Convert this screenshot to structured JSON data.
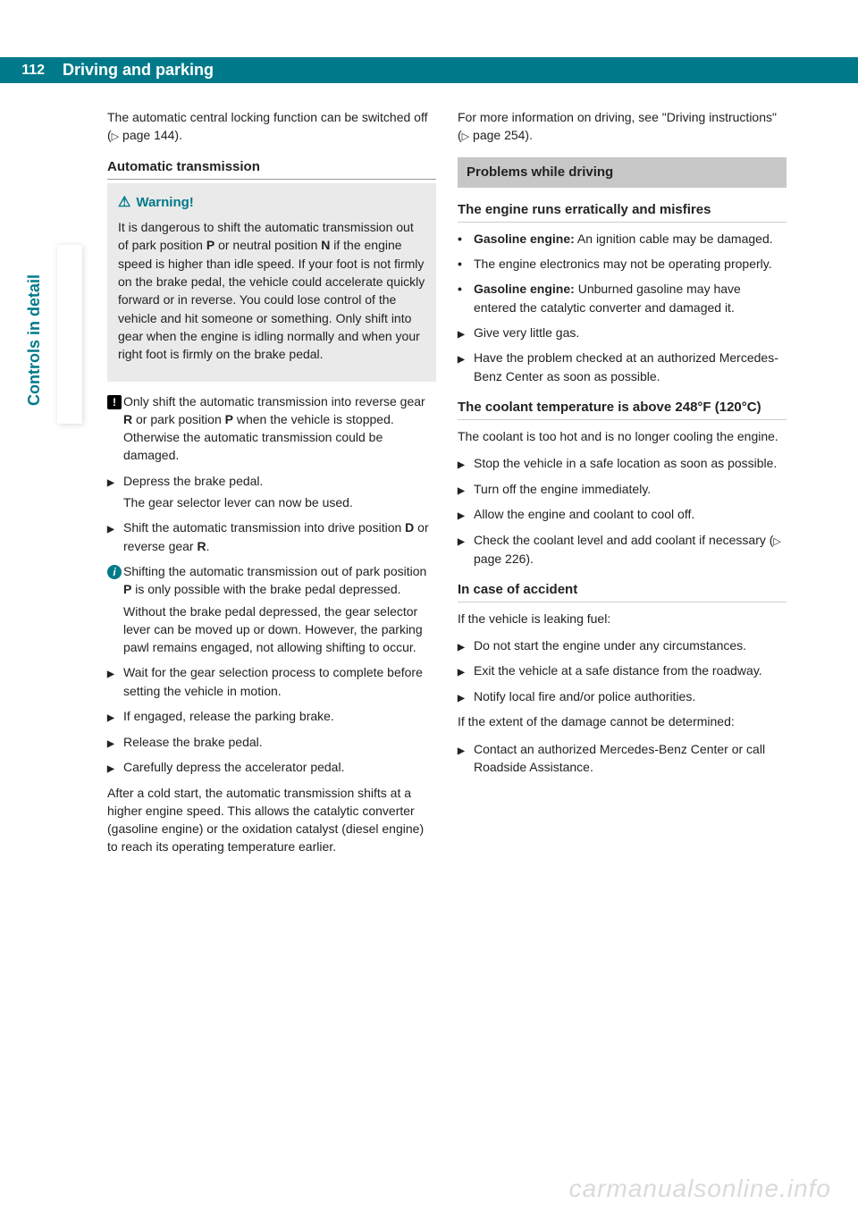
{
  "header": {
    "page_number": "112",
    "title": "Driving and parking"
  },
  "side_label": "Controls in detail",
  "watermark": "carmanualsonline.info",
  "col_left": {
    "intro": "The automatic central locking function can be switched off (",
    "intro_ref": " page 144).",
    "section1_title": "Automatic transmission",
    "warning_label": "Warning!",
    "warning_body_a": "It is dangerous to shift the automatic transmission out of park position ",
    "warning_body_b": " or neutral position ",
    "warning_body_c": " if the engine speed is higher than idle speed. If your foot is not firmly on the brake pedal, the vehicle could accelerate quickly forward or in reverse. You could lose control of the vehicle and hit someone or something. Only shift into gear when the engine is idling normally and when your right foot is firmly on the brake pedal.",
    "note1_a": "Only shift the automatic transmission into reverse gear ",
    "note1_b": " or park position ",
    "note1_c": " when the vehicle is stopped. Otherwise the automatic transmission could be damaged.",
    "step1_a": "Depress the brake pedal.",
    "step1_b": "The gear selector lever can now be used.",
    "step2_a": "Shift the automatic transmission into drive position ",
    "step2_b": " or reverse gear ",
    "step2_c": ".",
    "info1_a": "Shifting the automatic transmission out of park position ",
    "info1_b": " is only possible with the brake pedal depressed.",
    "info1_c": "Without the brake pedal depressed, the gear selector lever can be moved up or down. However, the parking pawl remains engaged, not allowing shifting to occur.",
    "step3": "Wait for the gear selection process to complete before setting the vehicle in motion.",
    "step4": "If engaged, release the parking brake.",
    "step5": "Release the brake pedal.",
    "step6": "Carefully depress the accelerator pedal.",
    "para_after": "After a cold start, the automatic transmission shifts at a higher engine speed. This allows the catalytic converter (gasoline engine) or the oxidation catalyst (diesel engine) to reach its operating temperature earlier."
  },
  "col_right": {
    "intro_a": "For more information on driving, see \"Driving instructions\" (",
    "intro_b": " page 254).",
    "box_title": "Problems while driving",
    "sub1_title": "The engine runs erratically and misfires",
    "b1_a": "Gasoline engine:",
    "b1_b": " An ignition cable may be damaged.",
    "b2": "The engine electronics may not be operating properly.",
    "b3_a": "Gasoline engine:",
    "b3_b": " Unburned gasoline may have entered the catalytic converter and damaged it.",
    "s1": "Give very little gas.",
    "s2": "Have the problem checked at an authorized Mercedes-Benz Center as soon as possible.",
    "sub2_title": "The coolant temperature is above 248°F (120°C)",
    "sub2_intro": "The coolant is too hot and is no longer cooling the engine.",
    "c1": "Stop the vehicle in a safe location as soon as possible.",
    "c2": "Turn off the engine immediately.",
    "c3": "Allow the engine and coolant to cool off.",
    "c4_a": "Check the coolant level and add coolant if necessary (",
    "c4_b": " page 226).",
    "sub3_title": "In case of accident",
    "sub3_intro": "If the vehicle is leaking fuel:",
    "a1": "Do not start the engine under any circumstances.",
    "a2": "Exit the vehicle at a safe distance from the roadway.",
    "a3": "Notify local fire and/or police authorities.",
    "sub3_after": "If the extent of the damage cannot be determined:",
    "a4": "Contact an authorized Mercedes-Benz Center or call Roadside Assistance."
  },
  "bold": {
    "P": "P",
    "N": "N",
    "R": "R",
    "D": "D"
  },
  "colors": {
    "brand": "#007a8a",
    "warn_bg": "#eaeaea",
    "note_bg": "#c7c7c7",
    "text": "#222222"
  }
}
